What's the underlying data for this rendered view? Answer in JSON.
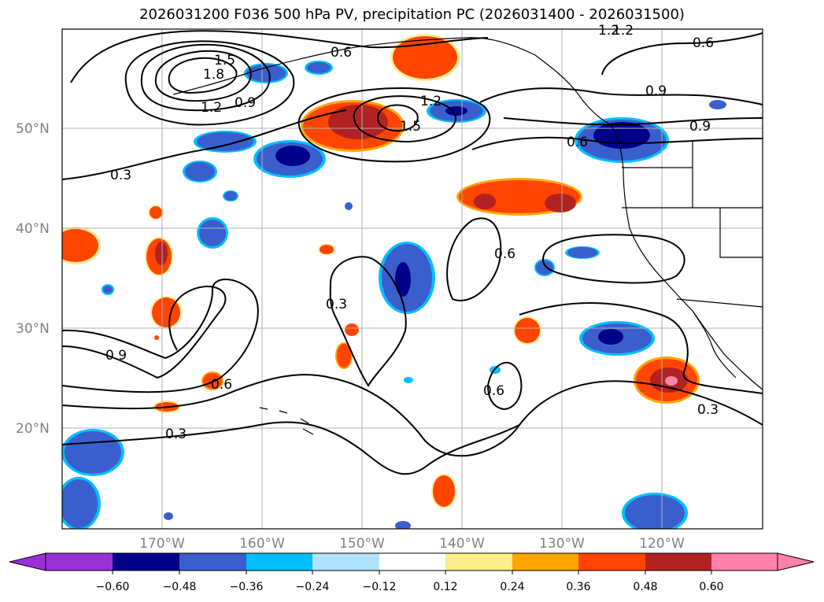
{
  "title": "2026031200 F036 500 hPa PV, precipitation PC (2026031400 - 2026031500)",
  "colors": {
    "neg_extend": "#9b30d9",
    "neg_060": "#00008b",
    "neg_048": "#3a5fcd",
    "neg_036": "#00bfff",
    "neg_024": "#b0e2ff",
    "neutral": "#ffffff",
    "pos_012": "#ffec8b",
    "pos_024": "#ffa500",
    "pos_036": "#ff4500",
    "pos_048": "#b22222",
    "pos_extend": "#ff82ab"
  },
  "map": {
    "longitude_labels": [
      "170°W",
      "160°W",
      "150°W",
      "140°W",
      "130°W",
      "120°W"
    ],
    "latitude_labels": [
      "50°N",
      "40°N",
      "30°N",
      "20°N"
    ],
    "grid": true,
    "contour_labels": [
      "1.2",
      "1.5",
      "1.8",
      "1.2",
      "0.9",
      "0.6",
      "1.2",
      "0.6",
      "0.9",
      "0.9",
      "0.6",
      "1.2",
      "1.5",
      "0.3",
      "0.3",
      "0.6",
      "0.9",
      "0.6",
      "0.6",
      "0.3",
      "0.3"
    ]
  },
  "colorbar": {
    "ticks": [
      "−0.60",
      "−0.48",
      "−0.36",
      "−0.24",
      "−0.12",
      "0.12",
      "0.24",
      "0.36",
      "0.48",
      "0.60"
    ],
    "levels": [
      -0.6,
      -0.48,
      -0.36,
      -0.24,
      -0.12,
      0.12,
      0.24,
      0.36,
      0.48,
      0.6
    ],
    "extend": "both"
  }
}
